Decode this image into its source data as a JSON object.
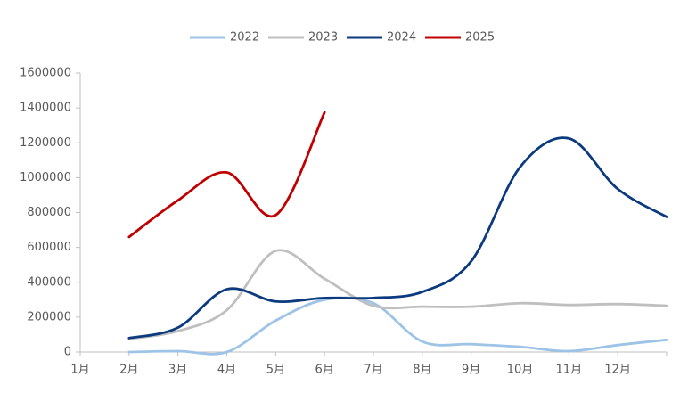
{
  "chart_data": {
    "type": "line",
    "categories": [
      "1月",
      "2月",
      "3月",
      "4月",
      "5月",
      "6月",
      "7月",
      "8月",
      "9月",
      "10月",
      "11月",
      "12月",
      null
    ],
    "series": [
      {
        "name": "2022",
        "color": "#9dc3e6",
        "values": [
          null,
          0,
          5000,
          0,
          180000,
          300000,
          280000,
          60000,
          45000,
          30000,
          5000,
          40000,
          70000
        ]
      },
      {
        "name": "2023",
        "color": "#bfbfbf",
        "values": [
          null,
          75000,
          120000,
          240000,
          580000,
          420000,
          265000,
          260000,
          260000,
          280000,
          270000,
          275000,
          265000
        ]
      },
      {
        "name": "2024",
        "color": "#0b3a7e",
        "values": [
          null,
          80000,
          140000,
          360000,
          290000,
          310000,
          310000,
          345000,
          520000,
          1060000,
          1225000,
          935000,
          775000
        ]
      },
      {
        "name": "2025",
        "color": "#c00000",
        "values": [
          null,
          660000,
          870000,
          1030000,
          785000,
          1375000,
          null,
          null,
          null,
          null,
          null,
          null,
          null
        ]
      }
    ],
    "ylim": [
      0,
      1600000
    ],
    "yticks": [
      0,
      200000,
      400000,
      600000,
      800000,
      1000000,
      1200000,
      1400000,
      1600000
    ],
    "legend": "top"
  }
}
